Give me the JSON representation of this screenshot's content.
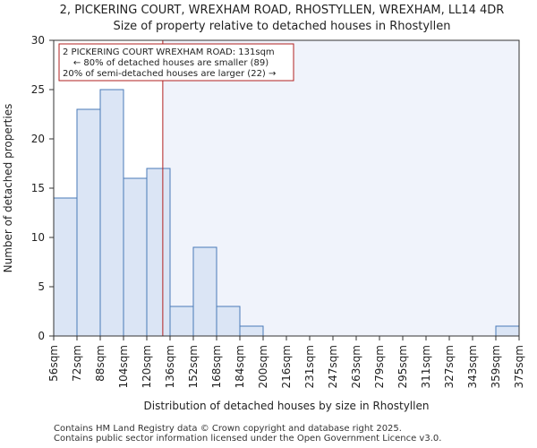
{
  "chart_data": {
    "type": "bar",
    "title": "2, PICKERING COURT, WREXHAM ROAD, RHOSTYLLEN, WREXHAM, LL14 4DR",
    "subtitle": "Size of property relative to detached houses in Rhostyllen",
    "xlabel": "Distribution of detached houses by size in Rhostyllen",
    "ylabel": "Number of detached properties",
    "bin_edges": [
      56,
      72,
      88,
      104,
      120,
      136,
      152,
      168,
      184,
      200,
      216,
      231,
      247,
      263,
      279,
      295,
      311,
      327,
      343,
      359,
      375
    ],
    "x_tick_labels": [
      "56sqm",
      "72sqm",
      "88sqm",
      "104sqm",
      "120sqm",
      "136sqm",
      "152sqm",
      "168sqm",
      "184sqm",
      "200sqm",
      "216sqm",
      "231sqm",
      "247sqm",
      "263sqm",
      "279sqm",
      "295sqm",
      "311sqm",
      "327sqm",
      "343sqm",
      "359sqm",
      "375sqm"
    ],
    "values": [
      14,
      23,
      25,
      16,
      17,
      3,
      9,
      3,
      1,
      0,
      0,
      0,
      0,
      0,
      0,
      0,
      0,
      0,
      0,
      1
    ],
    "y_ticks": [
      0,
      5,
      10,
      15,
      20,
      25,
      30
    ],
    "ylim": [
      0,
      30
    ],
    "grid": false,
    "marker": {
      "value": 131,
      "color": "#b22222",
      "label_lines": [
        "2 PICKERING COURT WREXHAM ROAD: 131sqm",
        "← 80% of detached houses are smaller (89)",
        "20% of semi-detached houses are larger (22) →"
      ]
    },
    "colors": {
      "bar_fill": "#dbe5f5",
      "bar_stroke": "#4a7ab8",
      "right_region": "#f0f3fb"
    }
  },
  "footer": {
    "line1": "Contains HM Land Registry data © Crown copyright and database right 2025.",
    "line2": "Contains public sector information licensed under the Open Government Licence v3.0."
  }
}
